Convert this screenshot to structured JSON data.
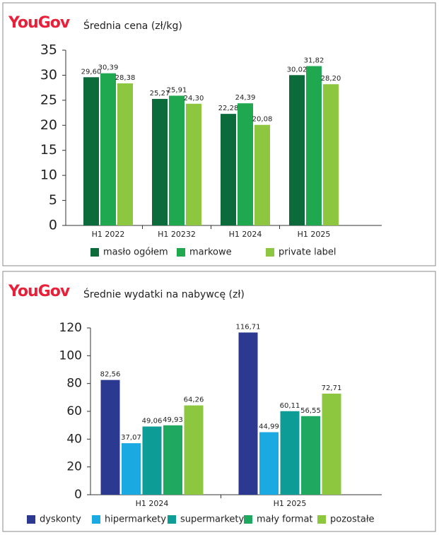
{
  "chart_data": [
    {
      "type": "bar",
      "brand": "YouGov",
      "title": "Średnia cena (zł/kg)",
      "categories": [
        "H1 2022",
        "H1 20232",
        "H1 2024",
        "H1 2025"
      ],
      "series": [
        {
          "name": "masło ogółem",
          "color": "#0b6b3a",
          "values": [
            29.6,
            25.27,
            22.28,
            30.02
          ],
          "value_labels": [
            "29,60",
            "25,27",
            "22,28",
            "30,02"
          ]
        },
        {
          "name": "markowe",
          "color": "#1fa84f",
          "values": [
            30.39,
            25.91,
            24.39,
            31.82
          ],
          "value_labels": [
            "30,39",
            "25,91",
            "24,39",
            "31,82"
          ]
        },
        {
          "name": "private label",
          "color": "#8dc63f",
          "values": [
            28.38,
            24.3,
            20.08,
            28.2
          ],
          "value_labels": [
            "28,38",
            "24,30",
            "20,08",
            "28,20"
          ]
        }
      ],
      "ylim": [
        0,
        35
      ],
      "yticks": [
        0,
        5,
        10,
        15,
        20,
        25,
        30,
        35
      ]
    },
    {
      "type": "bar",
      "brand": "YouGov",
      "title": "Średnie wydatki na nabywcę (zł)",
      "categories": [
        "H1 2024",
        "H1 2025"
      ],
      "series": [
        {
          "name": "dyskonty",
          "color": "#2b3990",
          "values": [
            82.56,
            116.71
          ],
          "value_labels": [
            "82,56",
            "116,71"
          ]
        },
        {
          "name": "hipermarkety",
          "color": "#1ba9e1",
          "values": [
            37.07,
            44.99
          ],
          "value_labels": [
            "37,07",
            "44,99"
          ]
        },
        {
          "name": "supermarkety",
          "color": "#0e9c96",
          "values": [
            49.06,
            60.11
          ],
          "value_labels": [
            "49,06",
            "60,11"
          ]
        },
        {
          "name": "mały format",
          "color": "#1fa860",
          "values": [
            49.93,
            56.55
          ],
          "value_labels": [
            "49,93",
            "56,55"
          ]
        },
        {
          "name": "pozostałe",
          "color": "#8dc63f",
          "values": [
            64.26,
            72.71
          ],
          "value_labels": [
            "64,26",
            "72,71"
          ]
        }
      ],
      "ylim": [
        0,
        120
      ],
      "yticks": [
        0,
        20,
        40,
        60,
        80,
        100,
        120
      ]
    }
  ]
}
